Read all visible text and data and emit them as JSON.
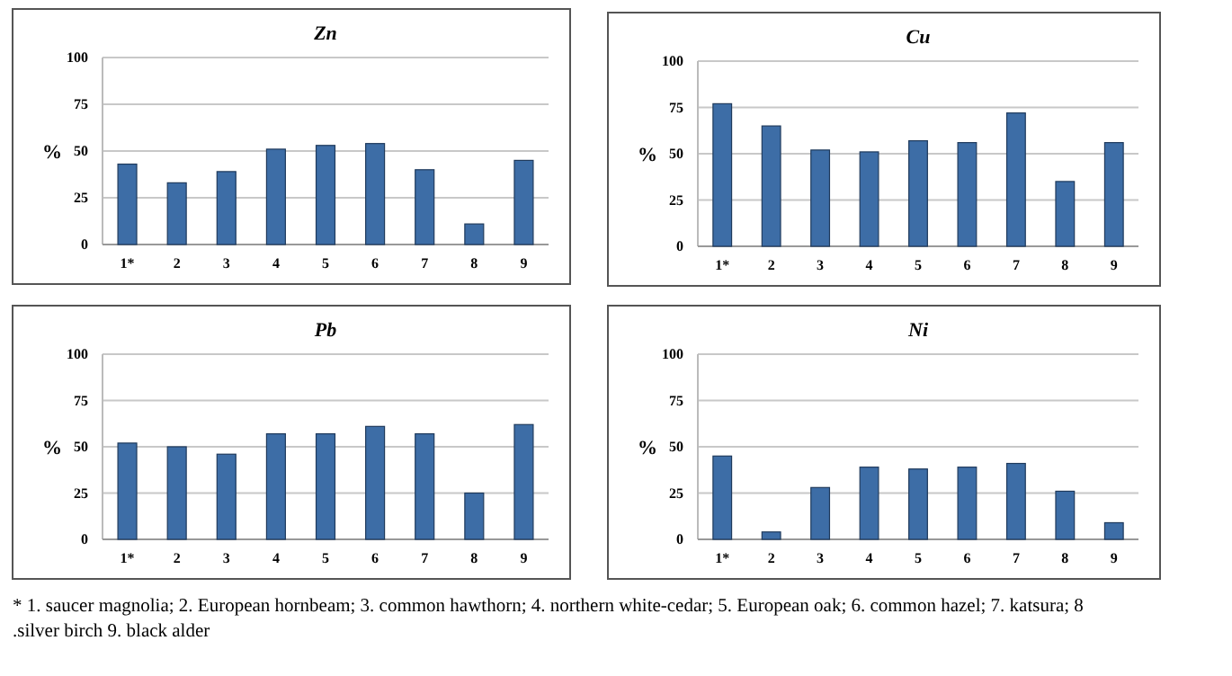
{
  "chart_data": [
    {
      "type": "bar",
      "title": "Zn",
      "ylabel": "%",
      "categories": [
        "1*",
        "2",
        "3",
        "4",
        "5",
        "6",
        "7",
        "8",
        "9"
      ],
      "values": [
        43,
        33,
        39,
        51,
        53,
        54,
        40,
        11,
        45
      ],
      "color": "#3d6da6",
      "ylim": [
        0,
        100
      ],
      "yticks": [
        0,
        25,
        50,
        75,
        100
      ],
      "grid": "y"
    },
    {
      "type": "bar",
      "title": "Cu",
      "ylabel": "%",
      "categories": [
        "1*",
        "2",
        "3",
        "4",
        "5",
        "6",
        "7",
        "8",
        "9"
      ],
      "values": [
        77,
        65,
        52,
        51,
        57,
        56,
        72,
        35,
        56
      ],
      "color": "#3d6da6",
      "ylim": [
        0,
        100
      ],
      "yticks": [
        0,
        25,
        50,
        75,
        100
      ],
      "grid": "y"
    },
    {
      "type": "bar",
      "title": "Pb",
      "ylabel": "%",
      "categories": [
        "1*",
        "2",
        "3",
        "4",
        "5",
        "6",
        "7",
        "8",
        "9"
      ],
      "values": [
        52,
        50,
        46,
        57,
        57,
        61,
        57,
        25,
        62
      ],
      "color": "#3d6da6",
      "ylim": [
        0,
        100
      ],
      "yticks": [
        0,
        25,
        50,
        75,
        100
      ],
      "grid": "y"
    },
    {
      "type": "bar",
      "title": "Ni",
      "ylabel": "%",
      "categories": [
        "1*",
        "2",
        "3",
        "4",
        "5",
        "6",
        "7",
        "8",
        "9"
      ],
      "values": [
        45,
        4,
        28,
        39,
        38,
        39,
        41,
        26,
        9
      ],
      "color": "#3d6da6",
      "ylim": [
        0,
        100
      ],
      "yticks": [
        0,
        25,
        50,
        75,
        100
      ],
      "grid": "y",
      "annotations": [
        "* 1. saucer magnolia; 2. European hornbeam; 3. common hawthorn; 4. northern white-cedar; 5. European oak; 6. common hazel; 7. katsura; 8 .silver birch 9. black alder"
      ]
    }
  ]
}
